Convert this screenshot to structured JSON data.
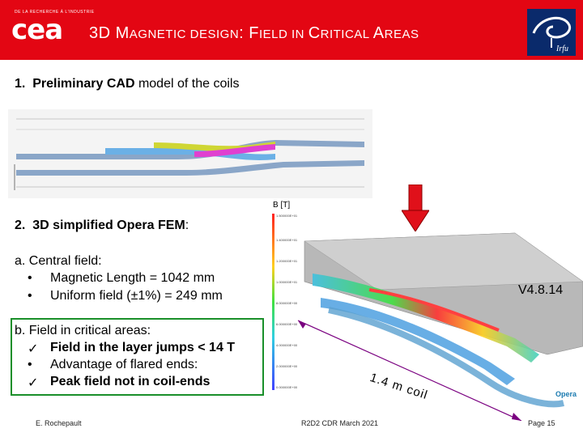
{
  "header": {
    "small_text": "DE LA RECHERCHE À L'INDUSTRIE",
    "logo_text": "cea",
    "title_parts": [
      "3D M",
      "AGNETIC DESIGN",
      ": F",
      "IELD IN ",
      "C",
      "RITICAL ",
      "A",
      "REAS"
    ],
    "irfu_text": "Irfu"
  },
  "section1": {
    "number": "1.",
    "bold": "Preliminary CAD",
    "rest": " model of the coils"
  },
  "section2": {
    "number": "2.",
    "bold": "3D simplified Opera FEM",
    "rest": ":"
  },
  "item_a": {
    "title": "a.  Central field:",
    "bullets": [
      "Magnetic Length = 1042 mm",
      "Uniform field (±1%) = 249 mm"
    ]
  },
  "item_b": {
    "title": "b.  Field in critical areas:",
    "bullets": [
      {
        "marker": "✓",
        "text": "Field in the layer jumps < 14 T",
        "bold": true
      },
      {
        "marker": "•",
        "text": "Advantage of flared ends:",
        "bold": false
      },
      {
        "marker": "✓",
        "text": "Peak field not in coil-ends",
        "bold": true
      }
    ]
  },
  "figure": {
    "colorbar_label": "B [T]",
    "colorbar_ticks": [
      "1.500000E+01",
      "1.400000E+01",
      "1.200000E+01",
      "1.000000E+01",
      "8.000000E+00",
      "6.000000E+00",
      "4.000000E+00",
      "2.000000E+00",
      "0.000000E+00"
    ],
    "version_label": "V4.8.14",
    "coil_note": "1.4 m coil",
    "opera_logo": "Opera"
  },
  "footer": {
    "author": "E. Rochepault",
    "event": "R2D2 CDR March 2021",
    "page": "Page 15"
  },
  "colors": {
    "header_red": "#e30613",
    "box_green": "#1a8f2a",
    "arrow_red": "#e0101a"
  }
}
